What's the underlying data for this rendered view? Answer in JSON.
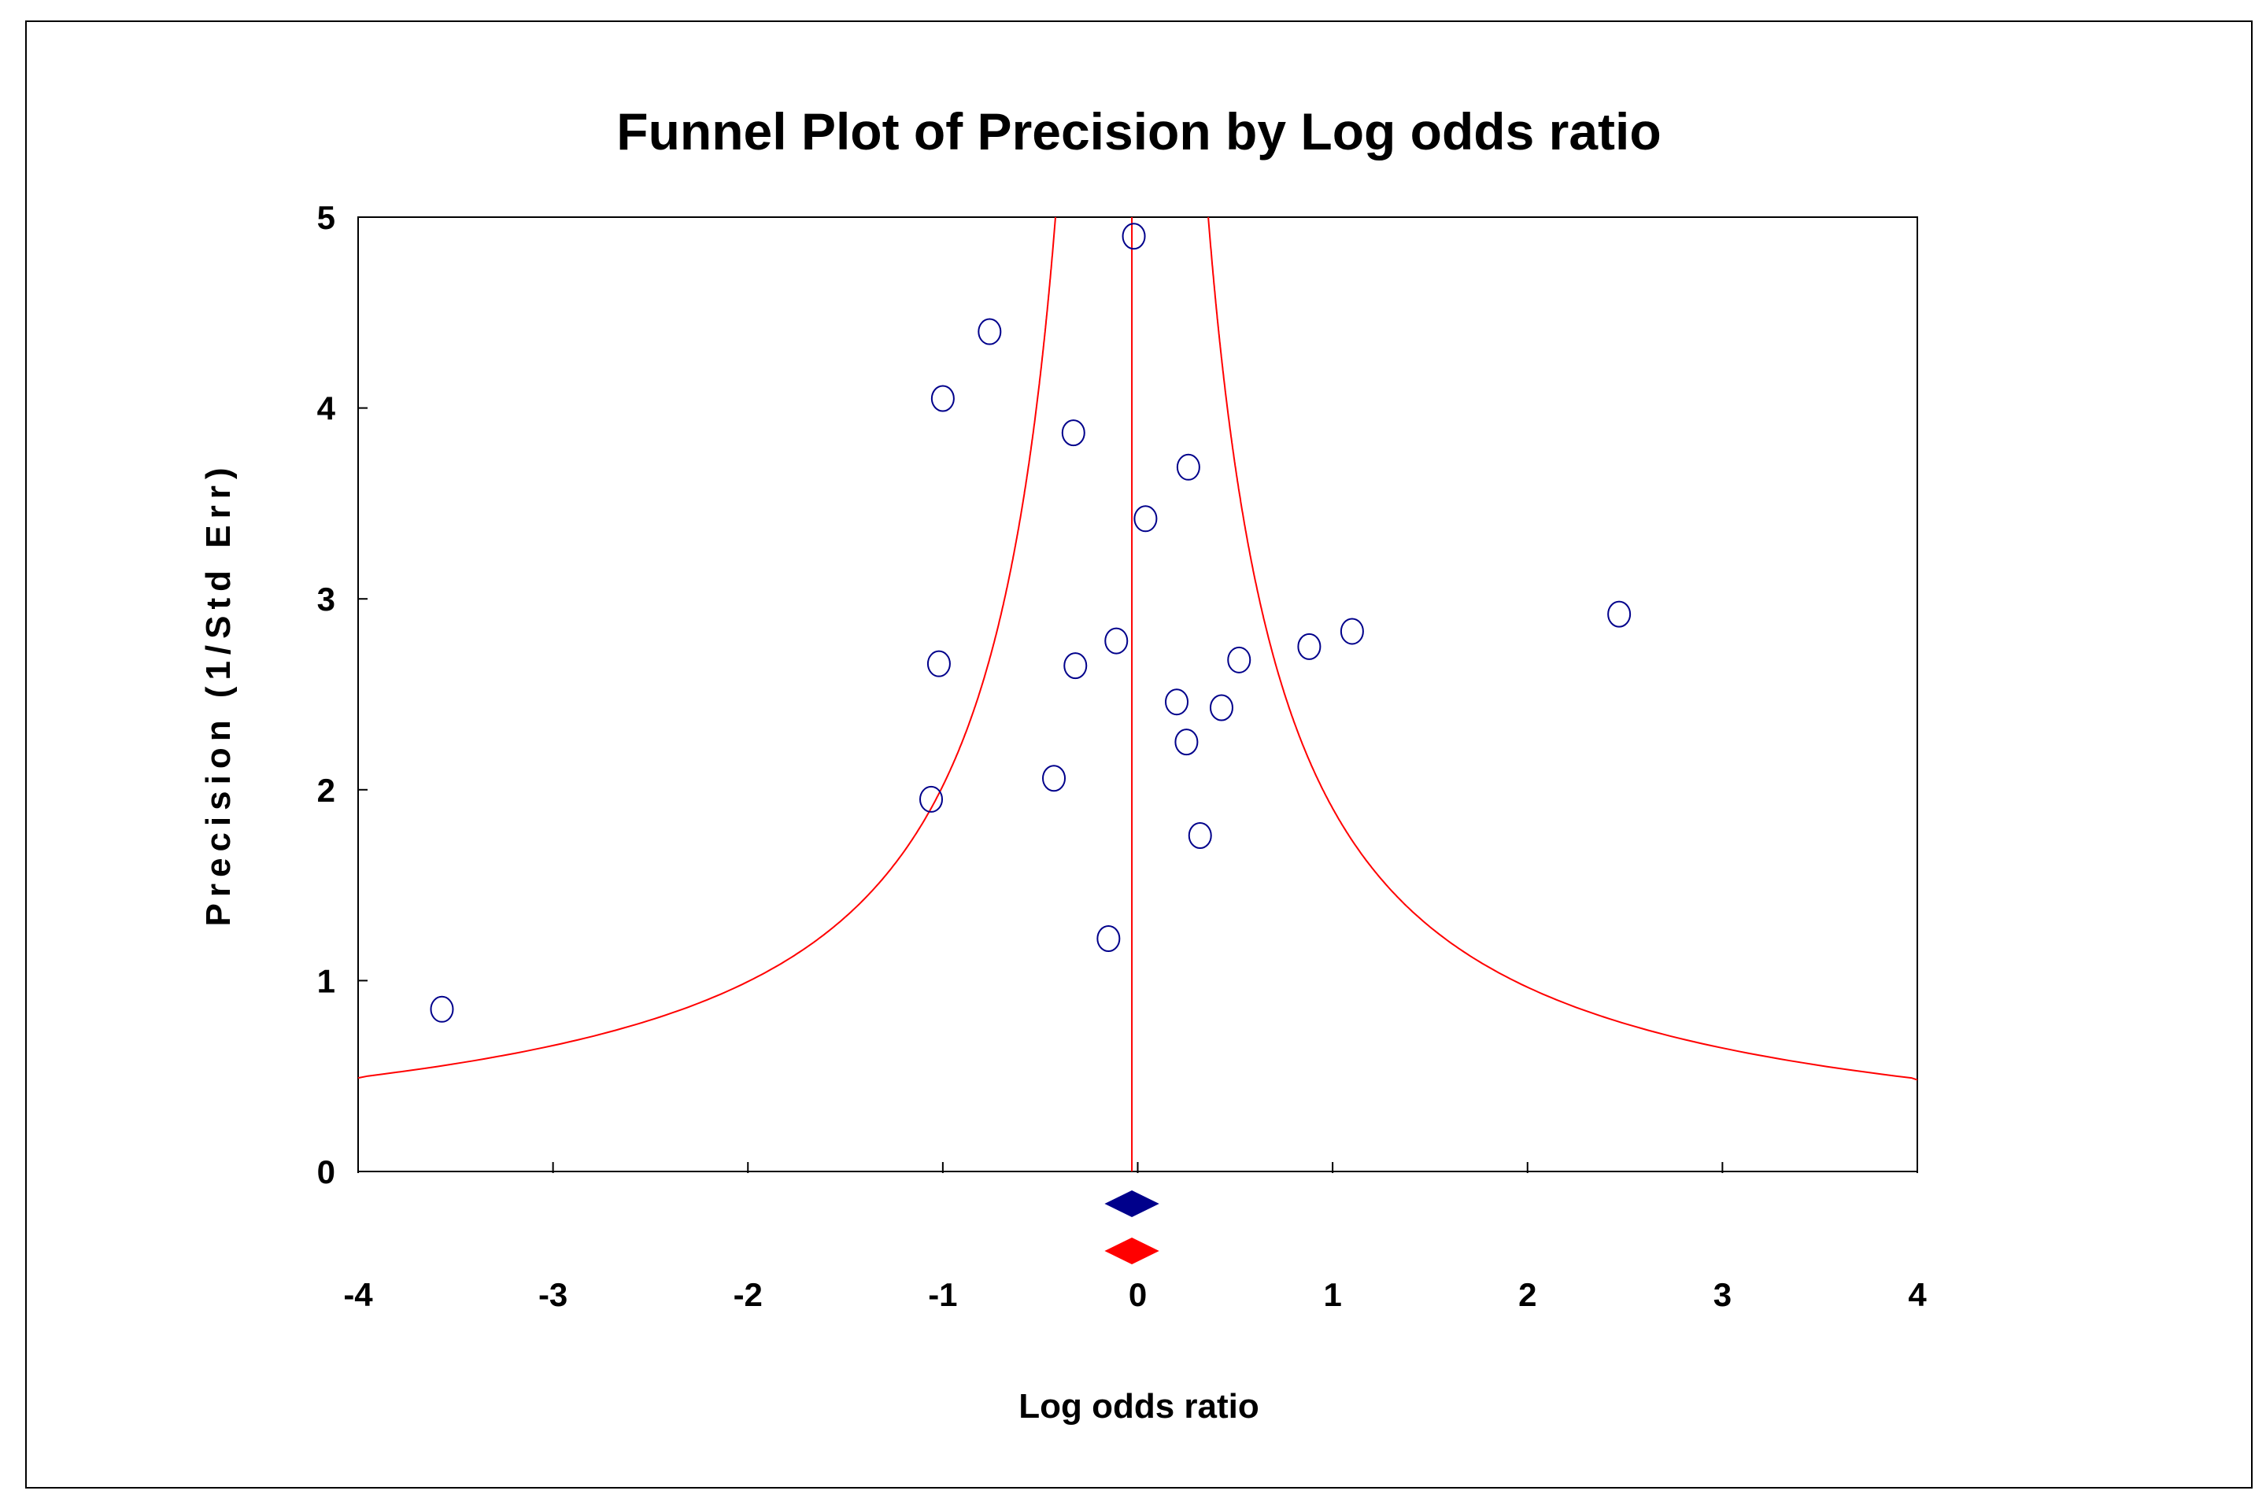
{
  "chart_data": {
    "type": "scatter",
    "title": "Funnel Plot of Precision by Log odds ratio",
    "xlabel": "Log odds ratio",
    "ylabel": "Precision (1/Std Err)",
    "xlim": [
      -4,
      4
    ],
    "ylim": [
      0,
      5
    ],
    "x_ticks": [
      "-4",
      "-3",
      "-2",
      "-1",
      "0",
      "1",
      "2",
      "3",
      "4"
    ],
    "y_ticks": [
      "0",
      "1",
      "2",
      "3",
      "4",
      "5"
    ],
    "grid": false,
    "legend": "none",
    "points": [
      {
        "x": -0.02,
        "y": 4.9
      },
      {
        "x": -0.76,
        "y": 4.4
      },
      {
        "x": -1.0,
        "y": 4.05
      },
      {
        "x": -0.33,
        "y": 3.87
      },
      {
        "x": 0.26,
        "y": 3.69
      },
      {
        "x": 0.04,
        "y": 3.42
      },
      {
        "x": 2.47,
        "y": 2.92
      },
      {
        "x": 1.1,
        "y": 2.83
      },
      {
        "x": -0.11,
        "y": 2.78
      },
      {
        "x": 0.88,
        "y": 2.75
      },
      {
        "x": 0.52,
        "y": 2.68
      },
      {
        "x": -1.02,
        "y": 2.66
      },
      {
        "x": -0.32,
        "y": 2.65
      },
      {
        "x": 0.2,
        "y": 2.46
      },
      {
        "x": 0.43,
        "y": 2.43
      },
      {
        "x": 0.25,
        "y": 2.25
      },
      {
        "x": -0.43,
        "y": 2.06
      },
      {
        "x": -1.06,
        "y": 1.95
      },
      {
        "x": 0.32,
        "y": 1.76
      },
      {
        "x": -0.15,
        "y": 1.22
      },
      {
        "x": -3.57,
        "y": 0.85
      }
    ],
    "funnel_center": -0.03,
    "observed_diamond": {
      "center": -0.03,
      "ci_low": -0.17,
      "ci_high": 0.11
    },
    "imputed_diamond": {
      "center": -0.03,
      "ci_low": -0.17,
      "ci_high": 0.11
    },
    "colors": {
      "points": "#00008b",
      "funnel": "#ff0000",
      "observed_diamond": "#00008b",
      "imputed_diamond": "#ff0000",
      "axes": "#000000"
    }
  }
}
